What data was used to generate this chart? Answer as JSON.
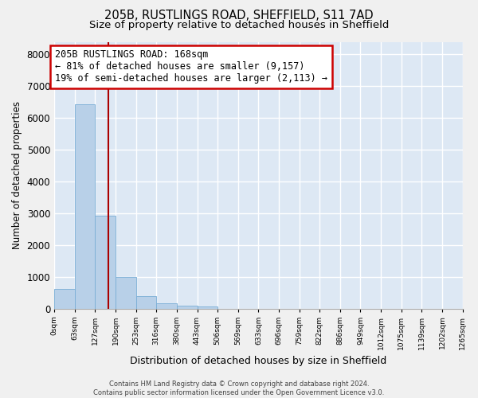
{
  "title_line1": "205B, RUSTLINGS ROAD, SHEFFIELD, S11 7AD",
  "title_line2": "Size of property relative to detached houses in Sheffield",
  "xlabel": "Distribution of detached houses by size in Sheffield",
  "ylabel": "Number of detached properties",
  "bin_edges": [
    0,
    63,
    127,
    190,
    253,
    316,
    380,
    443,
    506,
    569,
    633,
    696,
    759,
    822,
    886,
    949,
    1012,
    1075,
    1139,
    1202,
    1265
  ],
  "bar_heights": [
    620,
    6430,
    2920,
    990,
    380,
    160,
    80,
    70,
    0,
    0,
    0,
    0,
    0,
    0,
    0,
    0,
    0,
    0,
    0,
    0
  ],
  "bar_color": "#b8d0e8",
  "bar_edge_color": "#7aaed6",
  "property_size": 168,
  "vline_color": "#aa0000",
  "annotation_text": "205B RUSTLINGS ROAD: 168sqm\n← 81% of detached houses are smaller (9,157)\n19% of semi-detached houses are larger (2,113) →",
  "annotation_box_color": "#ffffff",
  "annotation_box_edge": "#cc0000",
  "ylim": [
    0,
    8400
  ],
  "yticks": [
    0,
    1000,
    2000,
    3000,
    4000,
    5000,
    6000,
    7000,
    8000
  ],
  "tick_labels": [
    "0sqm",
    "63sqm",
    "127sqm",
    "190sqm",
    "253sqm",
    "316sqm",
    "380sqm",
    "443sqm",
    "506sqm",
    "569sqm",
    "633sqm",
    "696sqm",
    "759sqm",
    "822sqm",
    "886sqm",
    "949sqm",
    "1012sqm",
    "1075sqm",
    "1139sqm",
    "1202sqm",
    "1265sqm"
  ],
  "bg_color": "#dde8f4",
  "fig_bg_color": "#f0f0f0",
  "footer_text": "Contains HM Land Registry data © Crown copyright and database right 2024.\nContains public sector information licensed under the Open Government Licence v3.0.",
  "grid_color": "#ffffff",
  "title_fontsize": 10.5,
  "subtitle_fontsize": 9.5,
  "ylabel_fontsize": 8.5,
  "xlabel_fontsize": 9,
  "ytick_fontsize": 8.5,
  "xtick_fontsize": 6.5,
  "annot_fontsize": 8.5,
  "footer_fontsize": 6
}
